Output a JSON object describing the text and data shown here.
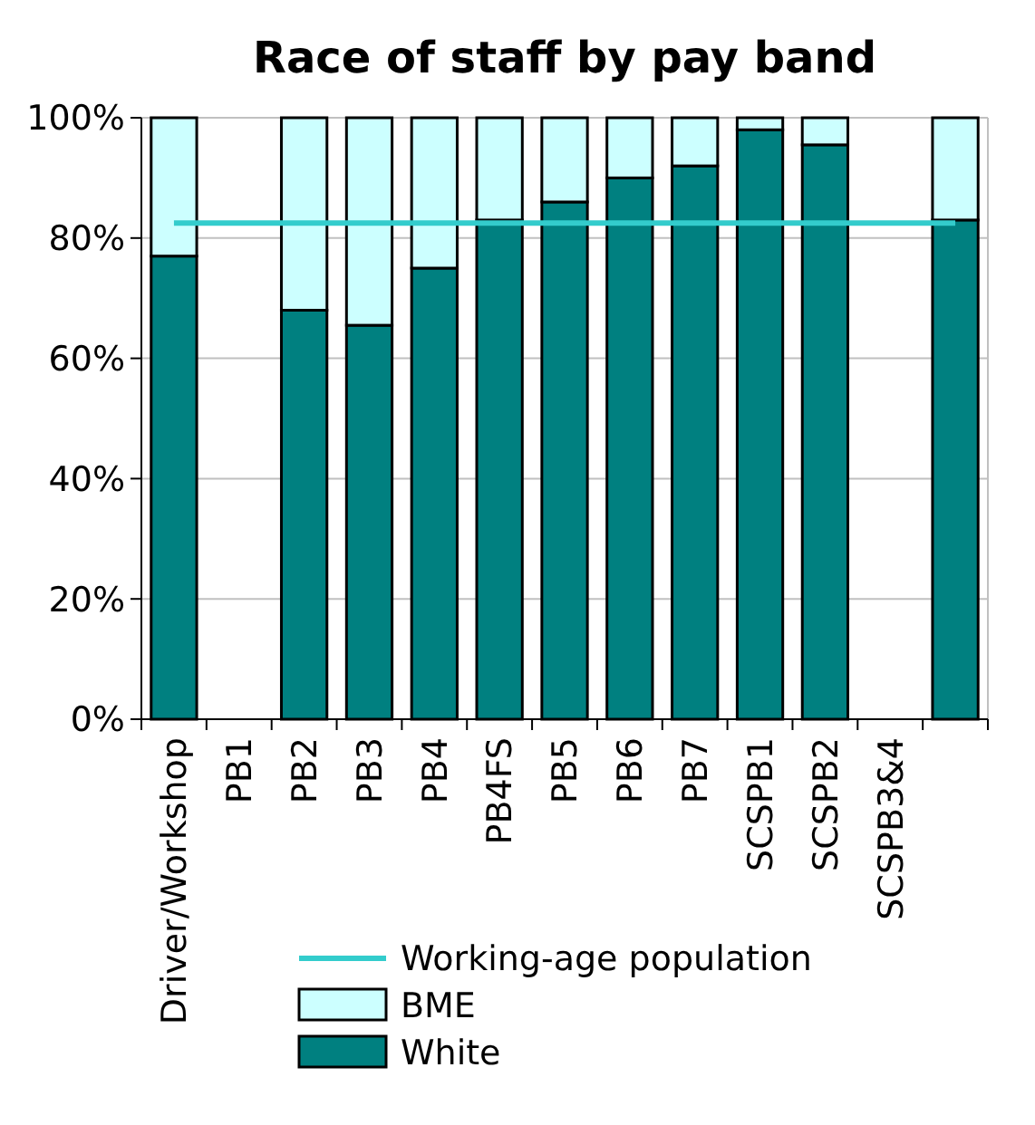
{
  "chart_data": {
    "type": "bar",
    "title": "Race of staff by pay band",
    "categories": [
      "Driver/Workshop",
      "PB1",
      "PB2",
      "PB3",
      "PB4",
      "PB4FS",
      "PB5",
      "PB6",
      "PB7",
      "SCSPB1",
      "SCSPB2",
      "SCSPB3&4",
      null
    ],
    "stacked": true,
    "series": [
      {
        "name": "White",
        "color": "#008080",
        "values": [
          77,
          null,
          68,
          65.5,
          75,
          83,
          86,
          90,
          92,
          98,
          95.5,
          null,
          83
        ]
      },
      {
        "name": "BME",
        "color": "#ccffff",
        "values": [
          23,
          null,
          32,
          34.5,
          25,
          17,
          14,
          10,
          8,
          2,
          4.5,
          null,
          17
        ]
      },
      {
        "name": "Working-age population",
        "type": "line",
        "color": "#33cccc",
        "values": [
          82.5,
          82.5,
          82.5,
          82.5,
          82.5,
          82.5,
          82.5,
          82.5,
          82.5,
          82.5,
          82.5,
          82.5,
          82.5
        ]
      }
    ],
    "ylim": [
      0,
      100
    ],
    "yticks": [
      {
        "value": 0,
        "label": "0%"
      },
      {
        "value": 20,
        "label": "20%"
      },
      {
        "value": 40,
        "label": "40%"
      },
      {
        "value": 60,
        "label": "60%"
      },
      {
        "value": 80,
        "label": "80%"
      },
      {
        "value": 100,
        "label": "100%"
      }
    ],
    "grid": "y",
    "legend": "bottom"
  }
}
